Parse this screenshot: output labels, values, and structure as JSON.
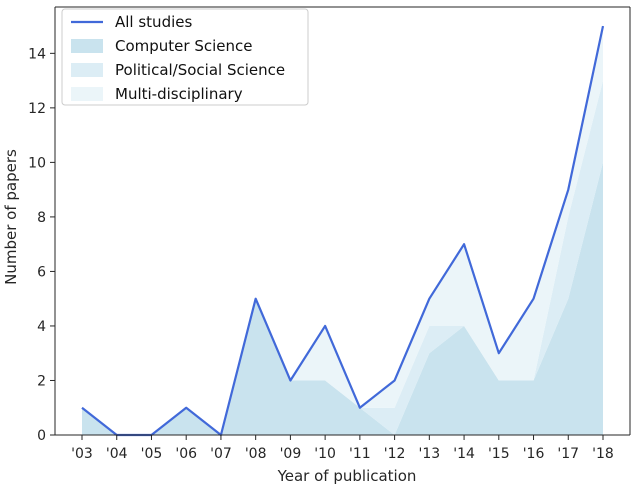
{
  "chart_data": {
    "type": "area",
    "categories": [
      "'03",
      "'04",
      "'05",
      "'06",
      "'07",
      "'08",
      "'09",
      "'10",
      "'11",
      "'12",
      "'13",
      "'14",
      "'15",
      "'16",
      "'17",
      "'18"
    ],
    "xlabel": "Year of publication",
    "ylabel": "Number of papers",
    "ylim": [
      0,
      15.7
    ],
    "yticks": [
      0,
      2,
      4,
      6,
      8,
      10,
      12,
      14
    ],
    "grid": false,
    "legend_position": "top-left",
    "line_series": {
      "name": "All studies",
      "color": "#4169d9",
      "values": [
        1,
        0,
        0,
        1,
        0,
        5,
        2,
        4,
        1,
        2,
        5,
        7,
        3,
        5,
        9,
        15
      ]
    },
    "stacked_series": [
      {
        "name": "Computer Science",
        "color": "#c9e3ee",
        "values": [
          1,
          0,
          0,
          1,
          0,
          5,
          2,
          2,
          1,
          0,
          3,
          4,
          2,
          2,
          5,
          10
        ]
      },
      {
        "name": "Political/Social Science",
        "color": "#dcedf5",
        "values": [
          0,
          0,
          0,
          0,
          0,
          0,
          0,
          0,
          0,
          1,
          1,
          0,
          0,
          0,
          3,
          3
        ]
      },
      {
        "name": "Multi-disciplinary",
        "color": "#ebf5f9",
        "values": [
          0,
          0,
          0,
          0,
          0,
          0,
          0,
          2,
          0,
          1,
          1,
          3,
          1,
          3,
          1,
          2
        ]
      }
    ]
  }
}
